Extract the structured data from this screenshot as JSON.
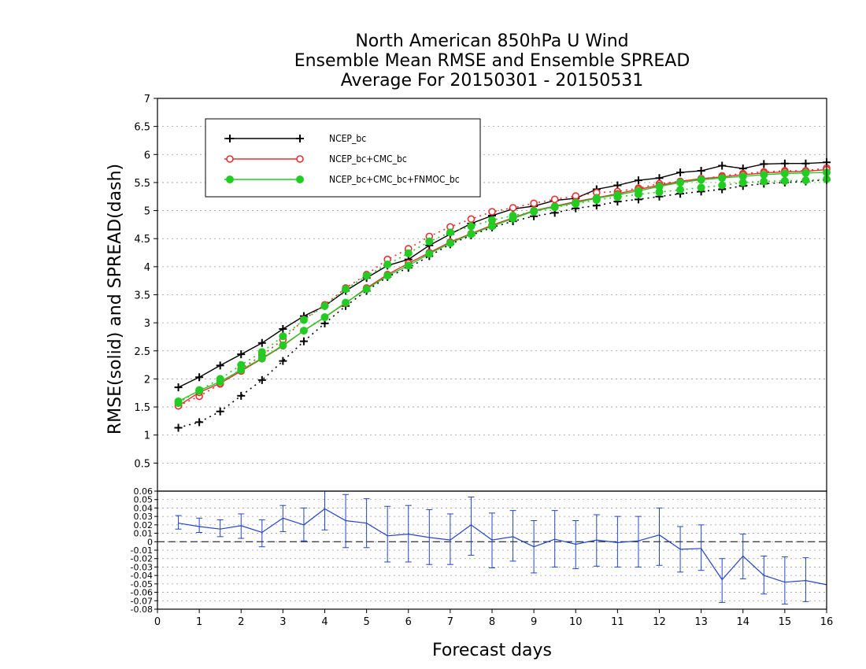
{
  "chart_data": [
    {
      "type": "line",
      "title_lines": [
        "North American 850hPa U Wind",
        "Ensemble Mean RMSE and Ensemble SPREAD",
        "Average For 20150301 - 20150531"
      ],
      "ylabel": "RMSE(solid) and SPREAD(dash)",
      "xlabel": "Forecast days",
      "xlim": [
        0,
        16
      ],
      "ylim": [
        0,
        7
      ],
      "x_ticks": [
        "0",
        "1",
        "2",
        "3",
        "4",
        "5",
        "6",
        "7",
        "8",
        "9",
        "10",
        "11",
        "12",
        "13",
        "14",
        "15",
        "16"
      ],
      "y_ticks": [
        "0.5",
        "1",
        "1.5",
        "2",
        "2.5",
        "3",
        "3.5",
        "4",
        "4.5",
        "5",
        "5.5",
        "6",
        "6.5",
        "7"
      ],
      "grid": true,
      "legend_position": "top-left",
      "x": [
        0.5,
        1,
        1.5,
        2,
        2.5,
        3,
        3.5,
        4,
        4.5,
        5,
        5.5,
        6,
        6.5,
        7,
        7.5,
        8,
        8.5,
        9,
        9.5,
        10,
        10.5,
        11,
        11.5,
        12,
        12.5,
        13,
        13.5,
        14,
        14.5,
        15,
        15.5,
        16
      ],
      "series": [
        {
          "name": "NCEP_bc",
          "color": "#000000",
          "marker": "plus",
          "rmse": [
            1.85,
            2.03,
            2.24,
            2.44,
            2.64,
            2.89,
            3.12,
            3.3,
            3.57,
            3.8,
            4.02,
            4.13,
            4.38,
            4.58,
            4.77,
            4.91,
            5.03,
            5.08,
            5.18,
            5.22,
            5.38,
            5.45,
            5.54,
            5.58,
            5.68,
            5.71,
            5.8,
            5.75,
            5.83,
            5.84,
            5.84,
            5.86
          ],
          "spread": [
            1.13,
            1.23,
            1.42,
            1.7,
            1.98,
            2.32,
            2.67,
            2.99,
            3.3,
            3.57,
            3.82,
            3.98,
            4.19,
            4.4,
            4.56,
            4.7,
            4.81,
            4.9,
            4.96,
            5.04,
            5.09,
            5.16,
            5.2,
            5.25,
            5.3,
            5.34,
            5.38,
            5.44,
            5.48,
            5.5,
            5.52,
            5.55
          ]
        },
        {
          "name": "NCEP_bc+CMC_bc",
          "color": "#e83030",
          "marker": "open-circle",
          "rmse": [
            1.52,
            1.76,
            1.92,
            2.14,
            2.36,
            2.59,
            2.86,
            3.1,
            3.35,
            3.62,
            3.86,
            4.06,
            4.25,
            4.44,
            4.59,
            4.74,
            4.87,
            5.0,
            5.08,
            5.16,
            5.23,
            5.3,
            5.38,
            5.45,
            5.52,
            5.57,
            5.6,
            5.64,
            5.67,
            5.69,
            5.7,
            5.73
          ],
          "spread": [
            1.52,
            1.69,
            1.91,
            2.18,
            2.42,
            2.7,
            3.06,
            3.32,
            3.62,
            3.86,
            4.13,
            4.32,
            4.54,
            4.71,
            4.85,
            4.98,
            5.05,
            5.13,
            5.2,
            5.26,
            5.32,
            5.34,
            5.4,
            5.48,
            5.52,
            5.56,
            5.62,
            5.66,
            5.69,
            5.71,
            5.71,
            5.76
          ]
        },
        {
          "name": "NCEP_bc+CMC_bc+FNMOC_bc",
          "color": "#22cc22",
          "marker": "filled-circle",
          "rmse": [
            1.6,
            1.79,
            1.95,
            2.16,
            2.37,
            2.6,
            2.86,
            3.1,
            3.36,
            3.6,
            3.84,
            4.02,
            4.23,
            4.42,
            4.58,
            4.72,
            4.86,
            4.99,
            5.07,
            5.14,
            5.22,
            5.28,
            5.35,
            5.43,
            5.5,
            5.55,
            5.58,
            5.61,
            5.64,
            5.66,
            5.67,
            5.68
          ],
          "spread": [
            1.57,
            1.8,
            2.0,
            2.25,
            2.48,
            2.76,
            3.05,
            3.3,
            3.6,
            3.84,
            4.04,
            4.24,
            4.45,
            4.61,
            4.72,
            4.83,
            4.91,
            4.98,
            5.06,
            5.12,
            5.19,
            5.24,
            5.29,
            5.33,
            5.37,
            5.41,
            5.45,
            5.5,
            5.52,
            5.53,
            5.54,
            5.56
          ]
        }
      ]
    },
    {
      "type": "line",
      "subtype": "errorbar",
      "xlim": [
        0,
        16
      ],
      "ylim": [
        -0.08,
        0.06
      ],
      "y_ticks": [
        "0.06",
        "0.05",
        "0.04",
        "0.03",
        "0.02",
        "0.01",
        "0",
        "-0.01",
        "-0.02",
        "-0.03",
        "-0.04",
        "-0.05",
        "-0.06",
        "-0.07",
        "-0.08"
      ],
      "grid": true,
      "color": "#2244cc",
      "x": [
        0.5,
        1,
        1.5,
        2,
        2.5,
        3,
        3.5,
        4,
        4.5,
        5,
        5.5,
        6,
        6.5,
        7,
        7.5,
        8,
        8.5,
        9,
        9.5,
        10,
        10.5,
        11,
        11.5,
        12,
        12.5,
        13,
        13.5,
        14,
        14.5,
        15,
        15.5,
        16
      ],
      "values": [
        0.022,
        0.018,
        0.015,
        0.019,
        0.011,
        0.028,
        0.02,
        0.039,
        0.025,
        0.022,
        0.007,
        0.009,
        0.005,
        0.002,
        0.02,
        0.002,
        0.006,
        -0.006,
        0.003,
        -0.003,
        0.002,
        -0.001,
        0.001,
        0.008,
        -0.009,
        -0.008,
        -0.045,
        -0.017,
        -0.04,
        -0.048,
        -0.046,
        -0.051
      ],
      "err_low": [
        0.015,
        0.011,
        0.006,
        0.004,
        -0.006,
        0.012,
        0.001,
        0.014,
        -0.007,
        -0.007,
        -0.024,
        -0.024,
        -0.027,
        -0.027,
        -0.016,
        -0.031,
        -0.023,
        -0.037,
        -0.03,
        -0.032,
        -0.029,
        -0.03,
        -0.03,
        -0.028,
        -0.036,
        -0.034,
        -0.072,
        -0.044,
        -0.062,
        -0.074,
        -0.071,
        -0.051
      ],
      "err_high": [
        0.031,
        0.028,
        0.026,
        0.033,
        0.026,
        0.043,
        0.04,
        0.062,
        0.056,
        0.051,
        0.042,
        0.043,
        0.038,
        0.033,
        0.053,
        0.034,
        0.037,
        0.025,
        0.037,
        0.025,
        0.032,
        0.03,
        0.03,
        0.04,
        0.018,
        0.02,
        -0.02,
        0.009,
        -0.017,
        -0.018,
        -0.019,
        -0.051
      ]
    }
  ]
}
